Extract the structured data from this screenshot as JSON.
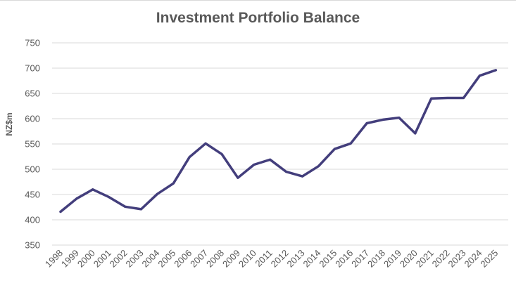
{
  "chart_data": {
    "type": "line",
    "title": "Investment Portfolio Balance",
    "xlabel": "",
    "ylabel": "NZ$m",
    "categories": [
      "1998",
      "1999",
      "2000",
      "2001",
      "2002",
      "2003",
      "2004",
      "2005",
      "2006",
      "2007",
      "2008",
      "2009",
      "2010",
      "2011",
      "2012",
      "2013",
      "2014",
      "2015",
      "2016",
      "2017",
      "2018",
      "2019",
      "2020",
      "2021",
      "2022",
      "2023",
      "2024",
      "2025"
    ],
    "series": [
      {
        "values": [
          416,
          442,
          460,
          445,
          426,
          421,
          451,
          472,
          524,
          551,
          530,
          483,
          509,
          519,
          495,
          486,
          506,
          540,
          551,
          591,
          598,
          602,
          571,
          640,
          641,
          641,
          685,
          696
        ],
        "color": "#433E7C"
      }
    ],
    "ylim": [
      350,
      750
    ],
    "yticks": [
      350,
      400,
      450,
      500,
      550,
      600,
      650,
      700,
      750
    ],
    "grid": true,
    "legend": "none"
  }
}
